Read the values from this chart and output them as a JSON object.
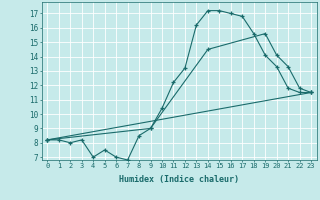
{
  "title": "",
  "xlabel": "Humidex (Indice chaleur)",
  "ylabel": "",
  "xlim": [
    -0.5,
    23.5
  ],
  "ylim": [
    6.8,
    17.8
  ],
  "xticks": [
    0,
    1,
    2,
    3,
    4,
    5,
    6,
    7,
    8,
    9,
    10,
    11,
    12,
    13,
    14,
    15,
    16,
    17,
    18,
    19,
    20,
    21,
    22,
    23
  ],
  "yticks": [
    7,
    8,
    9,
    10,
    11,
    12,
    13,
    14,
    15,
    16,
    17
  ],
  "bg_color": "#c6eaea",
  "line_color": "#1a6b6b",
  "grid_color": "#ffffff",
  "line1_x": [
    0,
    1,
    2,
    3,
    4,
    5,
    6,
    7,
    8,
    9,
    10,
    11,
    12,
    13,
    14,
    15,
    16,
    17,
    18,
    19,
    20,
    21,
    22,
    23
  ],
  "line1_y": [
    8.2,
    8.2,
    8.0,
    8.2,
    7.0,
    7.5,
    7.0,
    6.8,
    8.5,
    9.0,
    10.4,
    12.2,
    13.2,
    16.2,
    17.2,
    17.2,
    17.0,
    16.8,
    15.6,
    14.1,
    13.3,
    11.8,
    11.5,
    11.5
  ],
  "line2_x": [
    0,
    23
  ],
  "line2_y": [
    8.2,
    11.5
  ],
  "line3_x": [
    0,
    9,
    14,
    19,
    20,
    21,
    22,
    23
  ],
  "line3_y": [
    8.2,
    9.0,
    14.5,
    15.6,
    14.1,
    13.3,
    11.8,
    11.5
  ]
}
